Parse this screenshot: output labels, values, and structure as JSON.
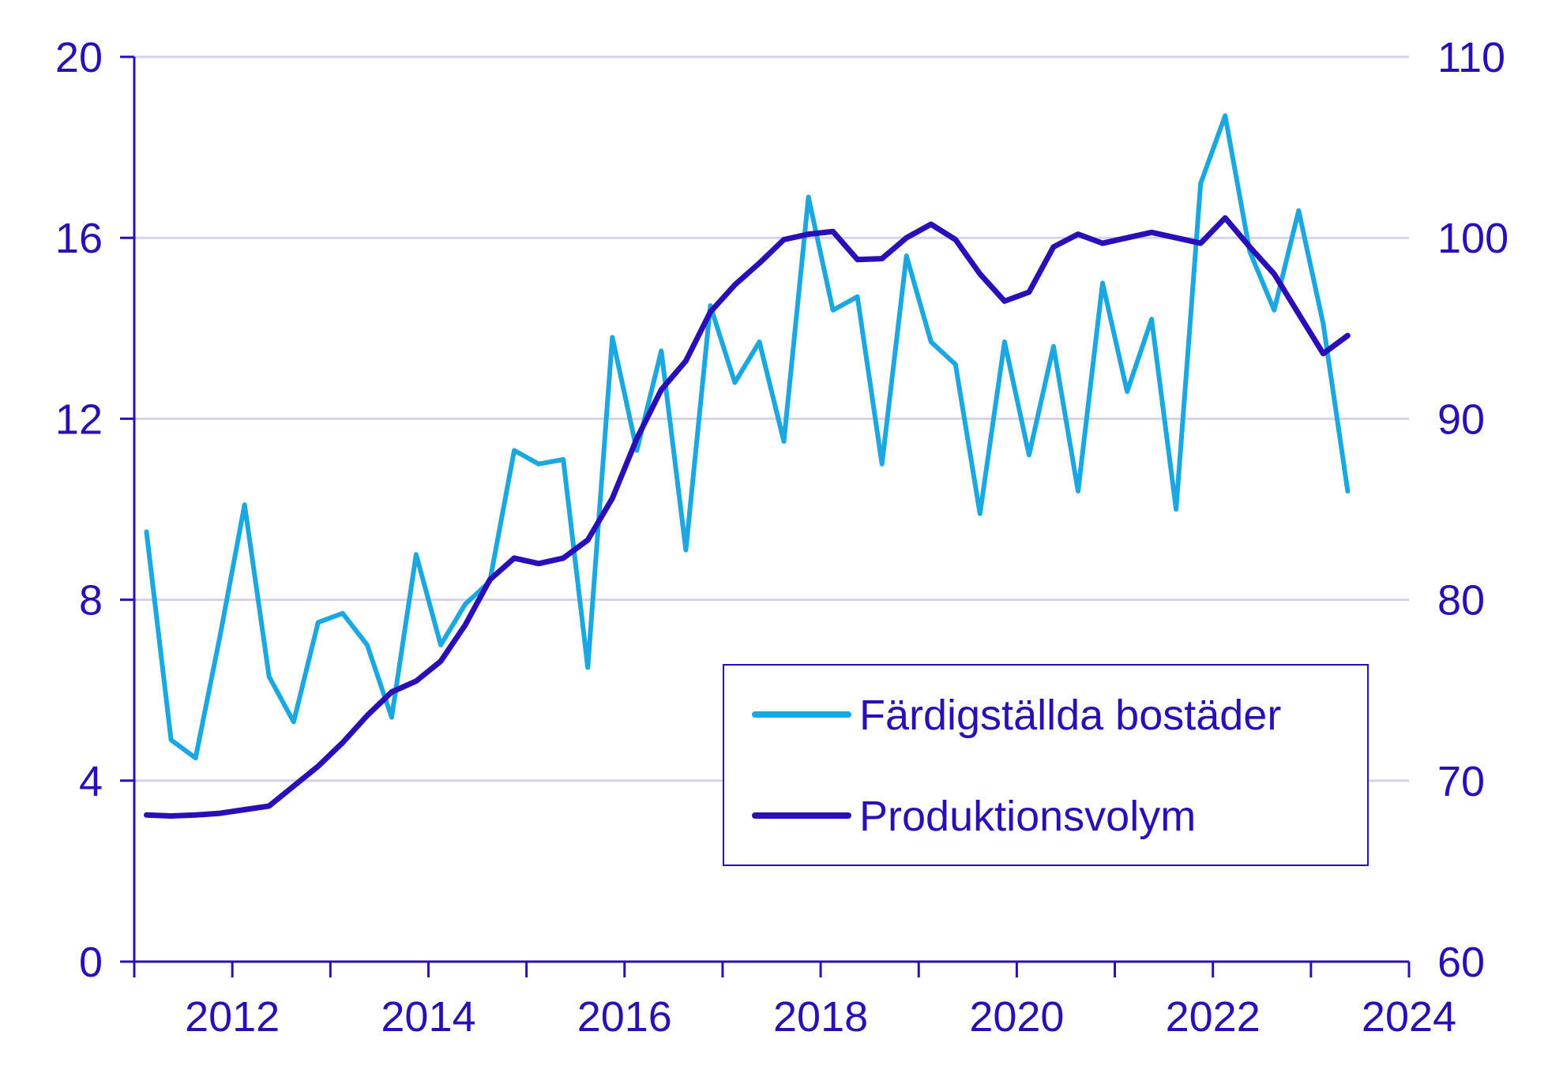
{
  "chart_data": {
    "type": "line",
    "title": "",
    "xlabel": "",
    "ylabel_left": "",
    "ylabel_right": "",
    "x_ticks": [
      "2012",
      "2014",
      "2016",
      "2018",
      "2020",
      "2022",
      "2024"
    ],
    "x_range": [
      2011,
      2024
    ],
    "y_left": {
      "range": [
        0,
        20
      ],
      "ticks": [
        "0",
        "4",
        "8",
        "12",
        "16",
        "20"
      ]
    },
    "y_right": {
      "range": [
        60,
        110
      ],
      "ticks": [
        "60",
        "70",
        "80",
        "90",
        "100",
        "110"
      ]
    },
    "grid": "horizontal",
    "legend_position": "bottom-right",
    "colors": {
      "axis_text": "#2a0fb8",
      "grid": "#d4d2ee",
      "series_1": "#1aa7e2",
      "series_2": "#2a0fb8"
    },
    "series": [
      {
        "name": "Färdigställda bostäder",
        "axis": "left",
        "x": [
          2011.125,
          2011.375,
          2011.625,
          2011.875,
          2012.125,
          2012.375,
          2012.625,
          2012.875,
          2013.125,
          2013.375,
          2013.625,
          2013.875,
          2014.125,
          2014.375,
          2014.625,
          2014.875,
          2015.125,
          2015.375,
          2015.625,
          2015.875,
          2016.125,
          2016.375,
          2016.625,
          2016.875,
          2017.125,
          2017.375,
          2017.625,
          2017.875,
          2018.125,
          2018.375,
          2018.625,
          2018.875,
          2019.125,
          2019.375,
          2019.625,
          2019.875,
          2020.125,
          2020.375,
          2020.625,
          2020.875,
          2021.125,
          2021.375,
          2021.625,
          2021.875,
          2022.125,
          2022.375,
          2022.625,
          2022.875,
          2023.125,
          2023.375
        ],
        "values": [
          9.5,
          4.9,
          4.5,
          7.2,
          10.1,
          6.3,
          5.3,
          7.5,
          7.7,
          7.0,
          5.4,
          9.0,
          7.0,
          7.9,
          8.4,
          11.3,
          11.0,
          11.1,
          6.5,
          13.8,
          11.3,
          13.5,
          9.1,
          14.5,
          12.8,
          13.7,
          11.5,
          16.9,
          14.4,
          14.7,
          11.0,
          15.6,
          13.7,
          13.2,
          9.9,
          13.7,
          11.2,
          13.6,
          10.4,
          15.0,
          12.6,
          14.2,
          10.0,
          17.2,
          18.7,
          15.7,
          14.4,
          16.6,
          14.1,
          10.4
        ]
      },
      {
        "name": "Produktionsvolym",
        "axis": "right",
        "x": [
          2011.125,
          2011.375,
          2011.625,
          2011.875,
          2012.125,
          2012.375,
          2012.625,
          2012.875,
          2013.125,
          2013.375,
          2013.625,
          2013.875,
          2014.125,
          2014.375,
          2014.625,
          2014.875,
          2015.125,
          2015.375,
          2015.625,
          2015.875,
          2016.125,
          2016.375,
          2016.625,
          2016.875,
          2017.125,
          2017.375,
          2017.625,
          2017.875,
          2018.125,
          2018.375,
          2018.625,
          2018.875,
          2019.125,
          2019.375,
          2019.625,
          2019.875,
          2020.125,
          2020.375,
          2020.625,
          2020.875,
          2021.125,
          2021.375,
          2021.625,
          2021.875,
          2022.125,
          2022.375,
          2022.625,
          2022.875,
          2023.125,
          2023.375
        ],
        "values": [
          68.1,
          68.05,
          68.1,
          68.2,
          68.4,
          68.6,
          69.7,
          70.8,
          72.1,
          73.6,
          74.9,
          75.5,
          76.6,
          78.6,
          81.1,
          82.3,
          82.0,
          82.3,
          83.3,
          85.6,
          88.9,
          91.6,
          93.2,
          95.9,
          97.4,
          98.6,
          99.9,
          100.2,
          100.35,
          98.8,
          98.85,
          100.0,
          100.75,
          99.9,
          98.0,
          96.5,
          97.0,
          99.5,
          100.2,
          99.7,
          100.0,
          100.3,
          100.0,
          99.7,
          101.1,
          99.5,
          98.0,
          95.8,
          93.6,
          94.6
        ]
      }
    ]
  }
}
